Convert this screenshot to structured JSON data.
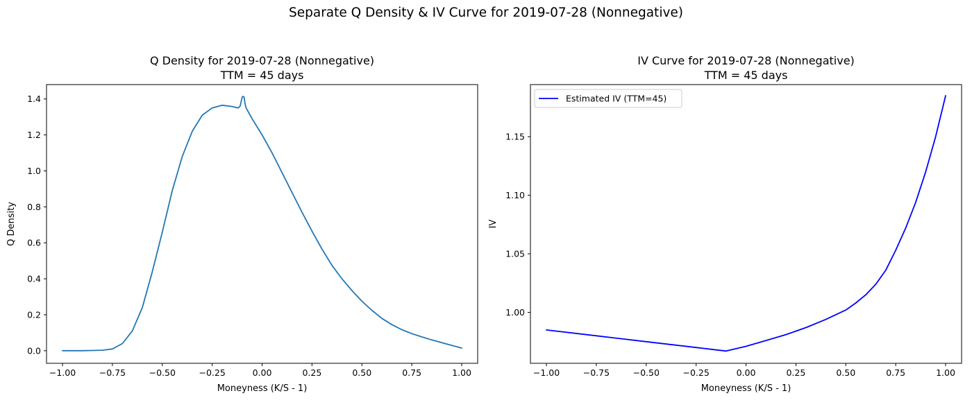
{
  "figure": {
    "suptitle": "Separate Q Density & IV Curve for 2019-07-28 (Nonnegative)"
  },
  "chart_data": [
    {
      "type": "line",
      "title": "Q Density for 2019-07-28 (Nonnegative)",
      "subtitle": "TTM = 45 days",
      "xlabel": "Moneyness (K/S - 1)",
      "ylabel": "Q Density",
      "xlim": [
        -1.08,
        1.08
      ],
      "ylim": [
        -0.07,
        1.48
      ],
      "xticks": [
        -1.0,
        -0.75,
        -0.5,
        -0.25,
        0.0,
        0.25,
        0.5,
        0.75,
        1.0
      ],
      "xtick_labels": [
        "−1.00",
        "−0.75",
        "−0.50",
        "−0.25",
        "0.00",
        "0.25",
        "0.50",
        "0.75",
        "1.00"
      ],
      "yticks": [
        0.0,
        0.2,
        0.4,
        0.6,
        0.8,
        1.0,
        1.2,
        1.4
      ],
      "ytick_labels": [
        "0.0",
        "0.2",
        "0.4",
        "0.6",
        "0.8",
        "1.0",
        "1.2",
        "1.4"
      ],
      "grid": false,
      "legend": null,
      "color": "#1f77b4",
      "series": [
        {
          "x": [
            -1.0,
            -0.9,
            -0.8,
            -0.75,
            -0.7,
            -0.65,
            -0.6,
            -0.55,
            -0.5,
            -0.45,
            -0.4,
            -0.35,
            -0.3,
            -0.25,
            -0.2,
            -0.15,
            -0.12,
            -0.11,
            -0.1,
            -0.095,
            -0.09,
            -0.085,
            -0.08,
            -0.07,
            -0.05,
            0.0,
            0.05,
            0.1,
            0.15,
            0.2,
            0.25,
            0.3,
            0.35,
            0.4,
            0.45,
            0.5,
            0.55,
            0.6,
            0.65,
            0.7,
            0.75,
            0.8,
            0.85,
            0.9,
            0.95,
            1.0
          ],
          "values": [
            0.0,
            0.0,
            0.003,
            0.01,
            0.04,
            0.11,
            0.24,
            0.44,
            0.66,
            0.89,
            1.08,
            1.22,
            1.31,
            1.35,
            1.365,
            1.358,
            1.35,
            1.36,
            1.41,
            1.415,
            1.41,
            1.37,
            1.35,
            1.33,
            1.29,
            1.2,
            1.1,
            0.99,
            0.88,
            0.77,
            0.665,
            0.565,
            0.475,
            0.4,
            0.335,
            0.275,
            0.225,
            0.18,
            0.145,
            0.117,
            0.095,
            0.077,
            0.06,
            0.045,
            0.03,
            0.015
          ]
        }
      ]
    },
    {
      "type": "line",
      "title": "IV Curve for 2019-07-28 (Nonnegative)",
      "subtitle": "TTM = 45 days",
      "xlabel": "Moneyness (K/S - 1)",
      "ylabel": "IV",
      "xlim": [
        -1.08,
        1.08
      ],
      "ylim": [
        0.9565,
        1.1945
      ],
      "xticks": [
        -1.0,
        -0.75,
        -0.5,
        -0.25,
        0.0,
        0.25,
        0.5,
        0.75,
        1.0
      ],
      "xtick_labels": [
        "−1.00",
        "−0.75",
        "−0.50",
        "−0.25",
        "0.00",
        "0.25",
        "0.50",
        "0.75",
        "1.00"
      ],
      "yticks": [
        1.0,
        1.05,
        1.1,
        1.15
      ],
      "ytick_labels": [
        "1.00",
        "1.05",
        "1.10",
        "1.15"
      ],
      "grid": false,
      "legend": "top-left",
      "color": "#0000ff",
      "series": [
        {
          "name": "Estimated IV (TTM=45)",
          "x": [
            -1.0,
            -0.75,
            -0.5,
            -0.25,
            -0.1,
            0.0,
            0.1,
            0.2,
            0.3,
            0.4,
            0.5,
            0.55,
            0.6,
            0.65,
            0.7,
            0.75,
            0.8,
            0.85,
            0.9,
            0.95,
            1.0
          ],
          "values": [
            0.985,
            0.98,
            0.975,
            0.97,
            0.967,
            0.971,
            0.976,
            0.981,
            0.987,
            0.994,
            1.002,
            1.008,
            1.015,
            1.024,
            1.036,
            1.053,
            1.072,
            1.094,
            1.12,
            1.15,
            1.185
          ]
        }
      ]
    }
  ]
}
